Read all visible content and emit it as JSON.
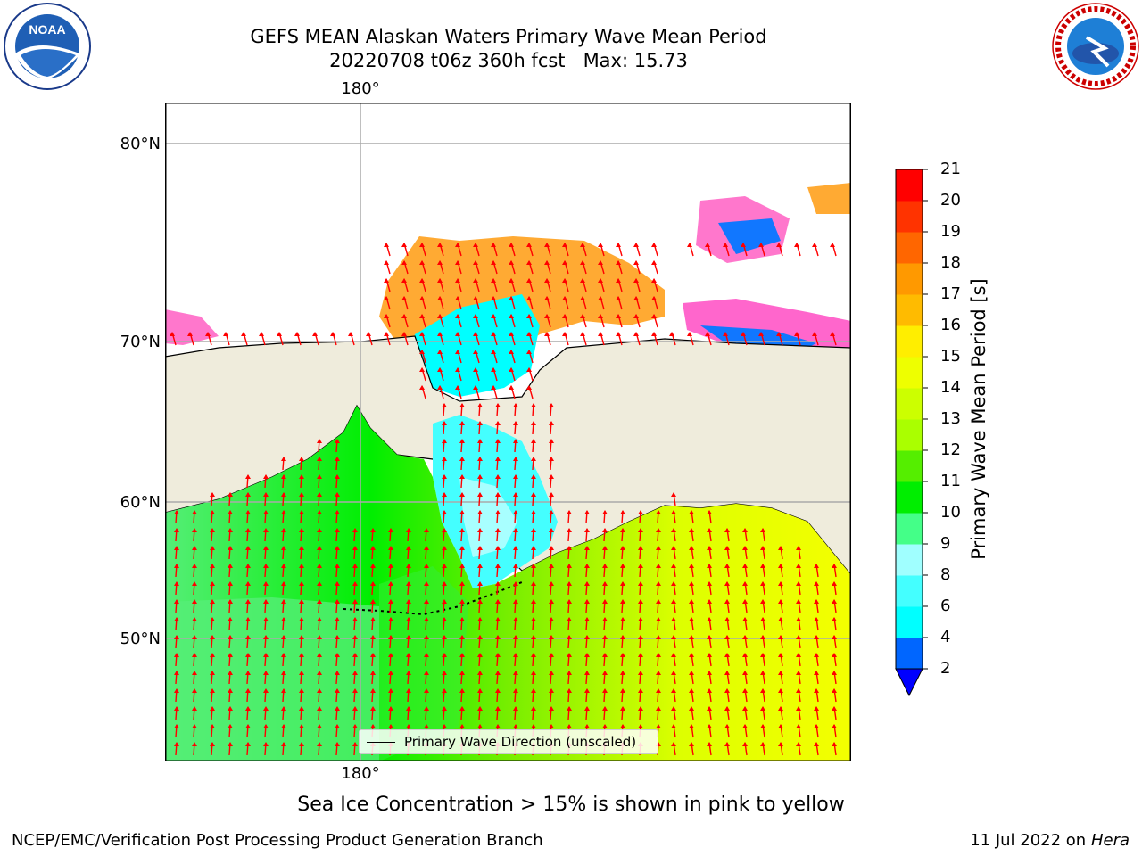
{
  "title_line1": "GEFS MEAN Alaskan Waters Primary Wave Mean Period",
  "title_line2": "20220708 t06z 360h fcst   Max: 15.73",
  "logos": {
    "left": "noaa-logo",
    "right": "national-weather-service-logo",
    "left_text": "NOAA",
    "right_text": "NATIONAL WEATHER SERVICE"
  },
  "map": {
    "lon_label_top": "180°",
    "lon_label_bottom": "180°",
    "lat_labels": [
      "80°N",
      "70°N",
      "60°N",
      "50°N"
    ],
    "land_color": "#efecdc",
    "arrow_color": "#ff0000",
    "legend_text": "Primary Wave Direction (unscaled)"
  },
  "colorbar": {
    "title": "Primary Wave Mean Period [s]",
    "ticks": [
      "2",
      "4",
      "6",
      "8",
      "9",
      "10",
      "11",
      "12",
      "13",
      "14",
      "15",
      "16",
      "17",
      "18",
      "19",
      "20",
      "21"
    ],
    "colors": [
      "#0066ff",
      "#00ddff",
      "#00ffff",
      "#44ffff",
      "#a0ffff",
      "#44ff88",
      "#00ee00",
      "#55ee00",
      "#aaff00",
      "#ccff00",
      "#eeff00",
      "#ffee00",
      "#ffbb00",
      "#ff9900",
      "#ff6600",
      "#ff3300",
      "#ff0000"
    ],
    "under_color": "#0000ff"
  },
  "caption": "Sea Ice Concentration > 15% is shown in pink to yellow",
  "footer_left": "NCEP/EMC/Verification Post Processing Product Generation Branch",
  "footer_right_date": "11 Jul 2022 on ",
  "footer_right_host": "Hera"
}
